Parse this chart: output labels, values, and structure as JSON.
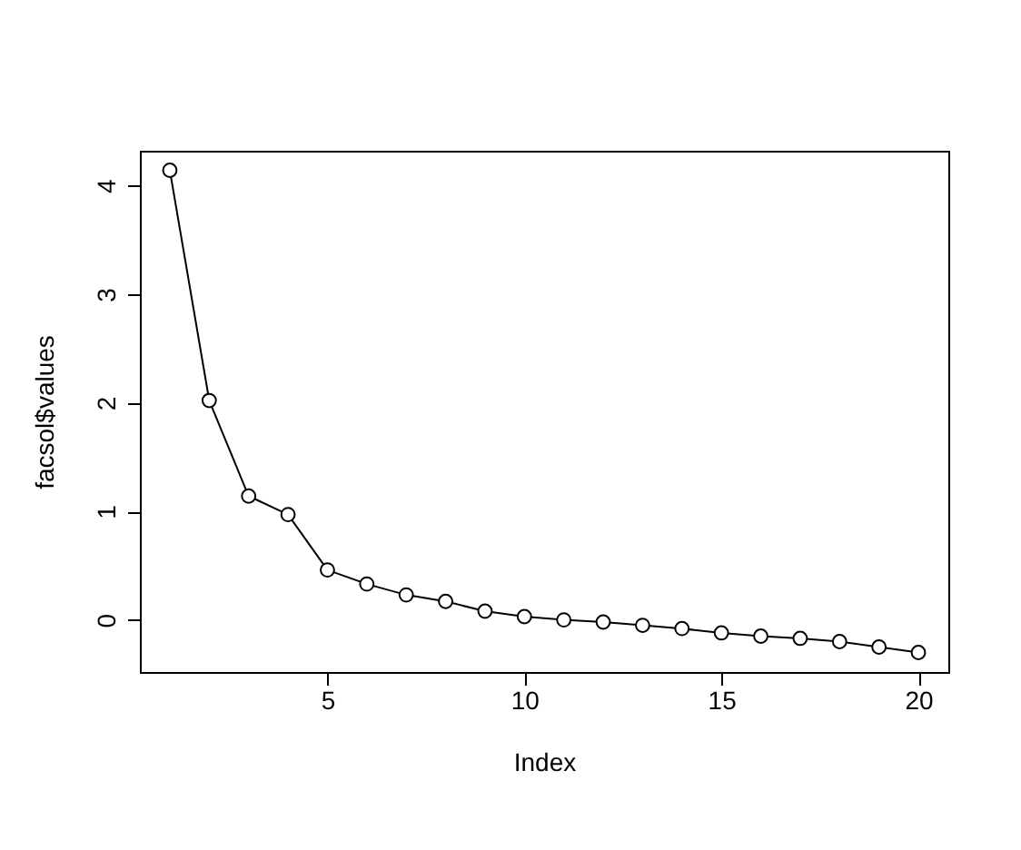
{
  "chart_data": {
    "type": "line",
    "xlabel": "Index",
    "ylabel": "facsol$values",
    "x": [
      1,
      2,
      3,
      4,
      5,
      6,
      7,
      8,
      9,
      10,
      11,
      12,
      13,
      14,
      15,
      16,
      17,
      18,
      19,
      20
    ],
    "series": [
      {
        "color": "#000000",
        "values": [
          4.14,
          2.02,
          1.14,
          0.97,
          0.46,
          0.33,
          0.23,
          0.17,
          0.08,
          0.03,
          0.0,
          -0.02,
          -0.05,
          -0.08,
          -0.12,
          -0.15,
          -0.17,
          -0.2,
          -0.25,
          -0.3
        ]
      }
    ],
    "xlim": [
      0.24,
      20.76
    ],
    "ylim": [
      -0.48,
      4.32
    ],
    "xticks": [
      5,
      10,
      15,
      20
    ],
    "yticks": [
      0,
      1,
      2,
      3,
      4
    ],
    "marker": "circle",
    "line_style": "solid",
    "grid": false,
    "legend": false
  }
}
